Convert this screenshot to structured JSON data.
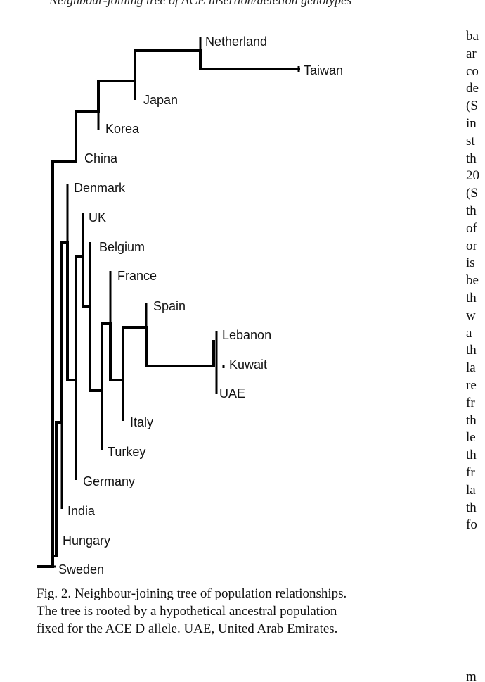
{
  "header_text": "Neighbour-joining tree of ACE insertion/deletion genotypes",
  "figure": {
    "taxa": [
      "Netherland",
      "Taiwan",
      "Japan",
      "Korea",
      "China",
      "Denmark",
      "UK",
      "Belgium",
      "France",
      "Spain",
      "Lebanon",
      "Kuwait",
      "UAE",
      "Italy",
      "Turkey",
      "Germany",
      "India",
      "Hungary",
      "Sweden"
    ]
  },
  "caption": {
    "line1": "Fig. 2.  Neighbour-joining tree of population relationships.",
    "line2": "The tree is rooted by a hypothetical ancestral population",
    "line3": "fixed for the ACE D allele. UAE, United Arab Emirates."
  },
  "right_column": {
    "fragments": [
      "ba",
      "ar",
      "co",
      "de",
      "(S",
      "in",
      "st",
      "th",
      "20",
      "(S",
      "th",
      "of",
      "or",
      "is",
      "be",
      "th",
      "w",
      "a",
      "th",
      "la",
      "re",
      "fr",
      "th",
      "le",
      "th",
      "fr",
      "la",
      "th",
      "fo"
    ],
    "last_fragment": "m"
  }
}
